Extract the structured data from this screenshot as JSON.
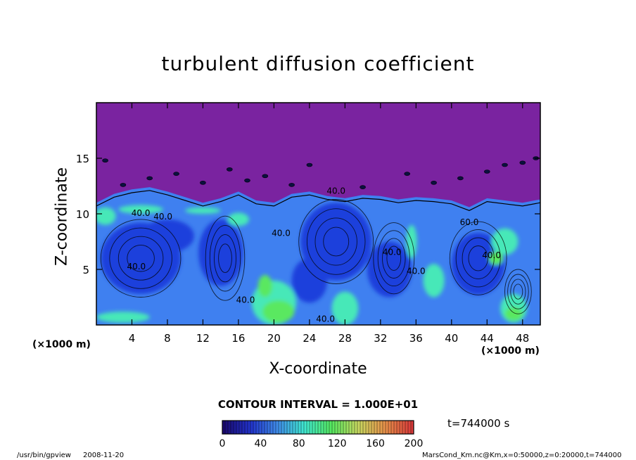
{
  "chart_data": {
    "type": "heatmap",
    "title": "turbulent diffusion coefficient",
    "xlabel": "X-coordinate",
    "ylabel": "Z-coordinate",
    "x_unit": "(×1000 m)",
    "x_unit_right": "(×1000 m)",
    "xlim": [
      0,
      50
    ],
    "ylim": [
      0,
      20
    ],
    "x_ticks": [
      4,
      8,
      12,
      16,
      20,
      24,
      28,
      32,
      36,
      40,
      44,
      48
    ],
    "y_ticks": [
      5,
      10,
      15
    ],
    "contour_labels": [
      {
        "x": 4.5,
        "z": 5.0,
        "text": "40.0"
      },
      {
        "x": 5.0,
        "z": 9.8,
        "text": "40.0"
      },
      {
        "x": 7.5,
        "z": 9.5,
        "text": "40.0"
      },
      {
        "x": 27.0,
        "z": 11.8,
        "text": "40.0"
      },
      {
        "x": 20.8,
        "z": 8.0,
        "text": "40.0"
      },
      {
        "x": 33.3,
        "z": 6.3,
        "text": "40.0"
      },
      {
        "x": 36.0,
        "z": 4.6,
        "text": "40.0"
      },
      {
        "x": 42.0,
        "z": 9.0,
        "text": "60.0"
      },
      {
        "x": 44.5,
        "z": 6.0,
        "text": "40.0"
      },
      {
        "x": 16.8,
        "z": 2.0,
        "text": "40.0"
      },
      {
        "x": 25.8,
        "z": 0.3,
        "text": "40.0"
      }
    ],
    "colorbar": {
      "min": 0,
      "max": 200,
      "ticks": [
        0,
        40,
        80,
        120,
        160,
        200
      ],
      "colors": [
        "#1a0a6e",
        "#2233cc",
        "#3f8ce8",
        "#40e8d0",
        "#55e860",
        "#c8d860",
        "#e8904a",
        "#d83a3a"
      ]
    },
    "contour_interval": "CONTOUR INTERVAL = 1.000E+01",
    "time_label": "t=744000 s",
    "colors": {
      "upper_region": "#7a23a0",
      "low": "#1f3fdc",
      "mid": "#3f80f0",
      "high": "#46e8b8",
      "peak": "#5ae860"
    }
  },
  "footer": {
    "program": "/usr/bin/gpview",
    "date": "2008-11-20",
    "source": "MarsCond_Km.nc@Km,x=0:50000,z=0:20000,t=744000"
  }
}
